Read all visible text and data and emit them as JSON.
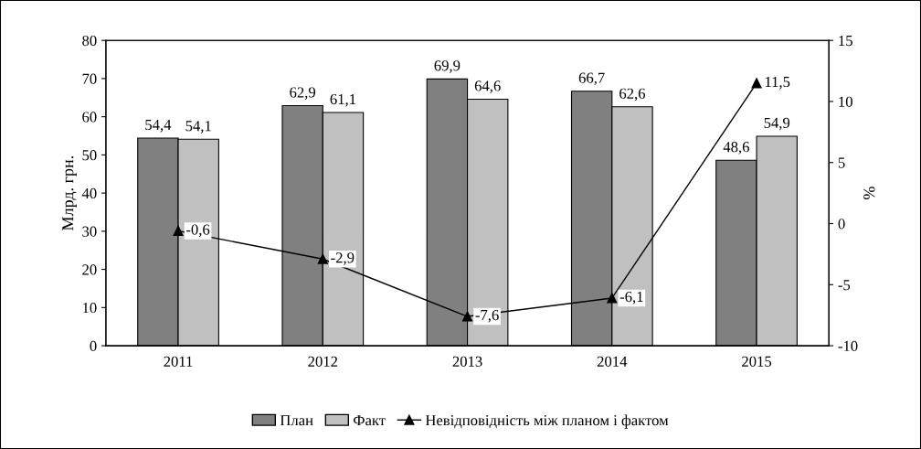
{
  "chart_data": {
    "type": "bar",
    "categories": [
      "2011",
      "2012",
      "2013",
      "2014",
      "2015"
    ],
    "ylabel": "Млрд. грн.",
    "y2label": "%",
    "ylim": [
      0,
      80
    ],
    "yticks": [
      0,
      10,
      20,
      30,
      40,
      50,
      60,
      70,
      80
    ],
    "y2lim": [
      -10,
      15
    ],
    "y2ticks": [
      -10,
      -5,
      0,
      5,
      10,
      15
    ],
    "series": [
      {
        "name": "План",
        "color": "#808080",
        "values": [
          54.4,
          62.9,
          69.9,
          66.7,
          48.6
        ],
        "value_labels": [
          "54,4",
          "62,9",
          "69,9",
          "66,7",
          "48,6"
        ]
      },
      {
        "name": "Факт",
        "color": "#c0c0c0",
        "values": [
          54.1,
          61.1,
          64.6,
          62.6,
          54.9
        ],
        "value_labels": [
          "54,1",
          "61,1",
          "64,6",
          "62,6",
          "54,9"
        ]
      },
      {
        "name": "Невідповідність між планом і фактом",
        "type": "line",
        "axis": "y2",
        "color": "#000000",
        "marker": "triangle",
        "line_style": "solid",
        "values": [
          -0.6,
          -2.9,
          -7.6,
          -6.1,
          11.5
        ],
        "value_labels": [
          "-0,6",
          "-2,9",
          "-7,6",
          "-6,1",
          "11,5"
        ]
      }
    ],
    "legend": "bottom",
    "grid": false
  }
}
